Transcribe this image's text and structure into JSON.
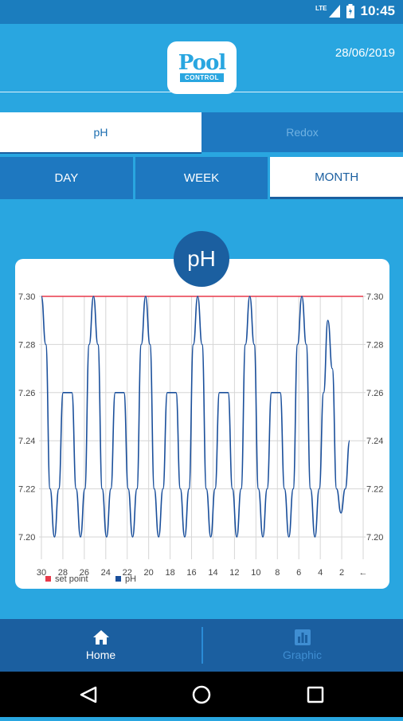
{
  "status_bar": {
    "network": "LTE",
    "time": "10:45"
  },
  "header": {
    "date": "28/06/2019",
    "logo_top": "Pool",
    "logo_bottom": "CONTROL"
  },
  "tabs": [
    {
      "label": "pH",
      "active": true
    },
    {
      "label": "Redox",
      "active": false
    }
  ],
  "periods": [
    {
      "label": "DAY",
      "active": false
    },
    {
      "label": "WEEK",
      "active": false
    },
    {
      "label": "MONTH",
      "active": true
    }
  ],
  "badge": "pH",
  "chart_data": {
    "type": "line",
    "ylim": [
      7.19,
      7.31
    ],
    "y_ticks": [
      "7.30",
      "7.28",
      "7.26",
      "7.24",
      "7.22",
      "7.20"
    ],
    "x_ticks": [
      "30",
      "28",
      "26",
      "24",
      "22",
      "20",
      "18",
      "16",
      "14",
      "12",
      "10",
      "8",
      "6",
      "4",
      "2",
      "←"
    ],
    "series": [
      {
        "name": "set point",
        "color": "#e8394a",
        "values": [
          7.3,
          7.3
        ]
      },
      {
        "name": "pH",
        "color": "#1a4f9b",
        "values": [
          7.3,
          7.28,
          7.22,
          7.2,
          7.22,
          7.26,
          7.26,
          7.26,
          7.22,
          7.2,
          7.22,
          7.28,
          7.3,
          7.28,
          7.22,
          7.2,
          7.22,
          7.26,
          7.26,
          7.26,
          7.22,
          7.2,
          7.22,
          7.28,
          7.3,
          7.28,
          7.22,
          7.2,
          7.22,
          7.26,
          7.26,
          7.26,
          7.22,
          7.2,
          7.22,
          7.28,
          7.3,
          7.28,
          7.22,
          7.2,
          7.22,
          7.26,
          7.26,
          7.26,
          7.22,
          7.2,
          7.22,
          7.28,
          7.3,
          7.28,
          7.22,
          7.2,
          7.22,
          7.26,
          7.26,
          7.26,
          7.22,
          7.2,
          7.22,
          7.28,
          7.3,
          7.28,
          7.22,
          7.2,
          7.22,
          7.26,
          7.29,
          7.27,
          7.22,
          7.21,
          7.22,
          7.24
        ]
      }
    ]
  },
  "nav": [
    {
      "label": "Home",
      "icon": "home-icon",
      "active": true
    },
    {
      "label": "Graphic",
      "icon": "bar-chart-icon",
      "active": false
    }
  ],
  "system_nav": [
    "back-icon",
    "home-circle-icon",
    "recents-icon"
  ]
}
